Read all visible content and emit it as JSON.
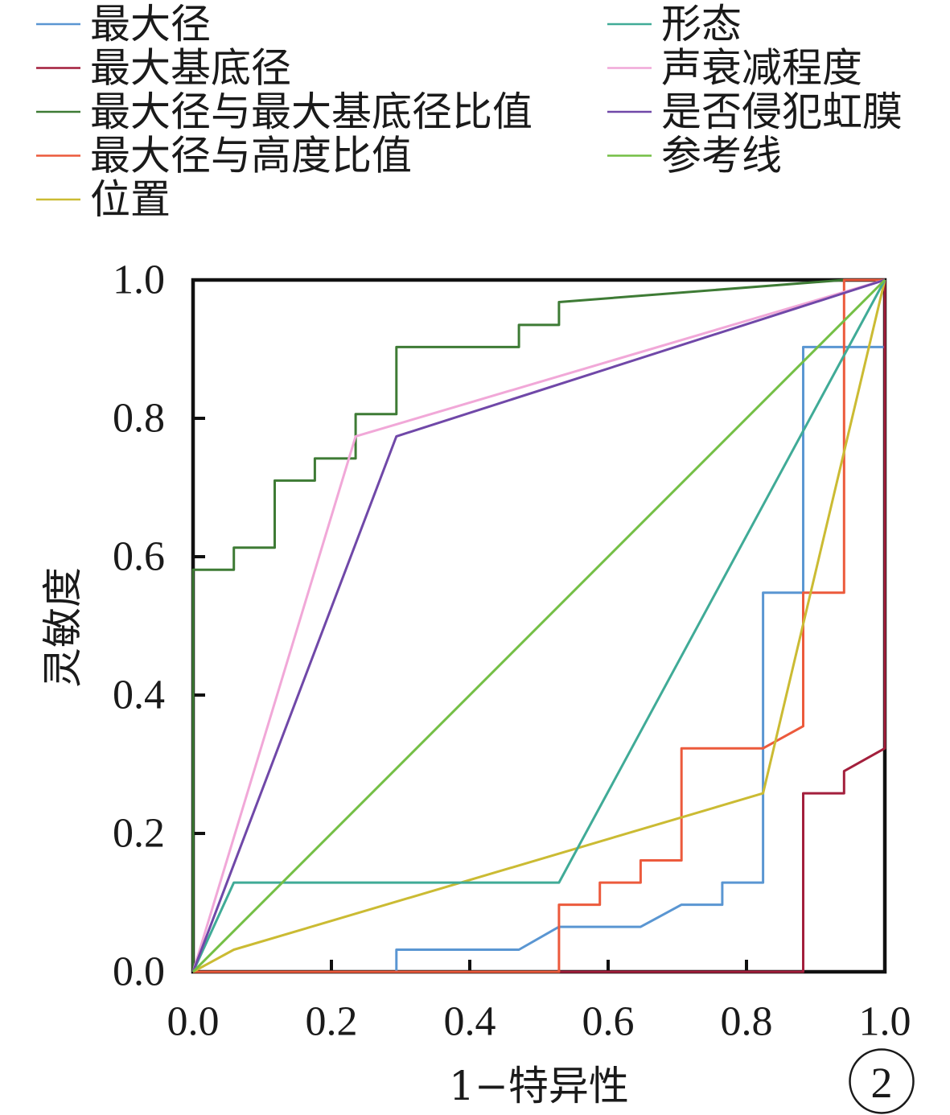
{
  "chart_data": {
    "type": "line",
    "xlabel": "1−特异性",
    "ylabel": "灵敏度",
    "xlim": [
      0,
      1
    ],
    "ylim": [
      0,
      1
    ],
    "x_ticks": [
      0,
      0.2,
      0.4,
      0.6,
      0.8,
      1.0
    ],
    "x_tick_labels": [
      "0.0",
      "0.2",
      "0.4",
      "0.6",
      "0.8",
      "1.0"
    ],
    "y_ticks": [
      0,
      0.2,
      0.4,
      0.6,
      0.8,
      1.0
    ],
    "y_tick_labels": [
      "0.0",
      "0.2",
      "0.4",
      "0.6",
      "0.8",
      "1.0"
    ],
    "grid": false,
    "legend_position": "top",
    "series": [
      {
        "name": "最大径",
        "color": "#5a96d2",
        "x": [
          0,
          0.294,
          0.294,
          0.471,
          0.529,
          0.647,
          0.706,
          0.765,
          0.765,
          0.824,
          0.824,
          0.882,
          0.882,
          1,
          1
        ],
        "y": [
          0,
          0,
          0.032,
          0.032,
          0.065,
          0.065,
          0.097,
          0.097,
          0.129,
          0.129,
          0.548,
          0.548,
          0.903,
          0.903,
          1
        ]
      },
      {
        "name": "最大基底径",
        "color": "#a31f3c",
        "x": [
          0,
          0.882,
          0.882,
          0.941,
          0.941,
          1,
          1
        ],
        "y": [
          0,
          0,
          0.258,
          0.258,
          0.29,
          0.323,
          1
        ]
      },
      {
        "name": "最大径与最大基底径比值",
        "color": "#3e7b35",
        "x": [
          0,
          0,
          0.059,
          0.059,
          0.118,
          0.118,
          0.176,
          0.176,
          0.235,
          0.235,
          0.294,
          0.294,
          0.471,
          0.471,
          0.529,
          0.529,
          0.941,
          1
        ],
        "y": [
          0,
          0.581,
          0.581,
          0.613,
          0.613,
          0.71,
          0.71,
          0.742,
          0.742,
          0.806,
          0.806,
          0.903,
          0.903,
          0.935,
          0.935,
          0.968,
          1,
          1
        ]
      },
      {
        "name": "最大径与高度比值",
        "color": "#ec5a3c",
        "x": [
          0,
          0.529,
          0.529,
          0.588,
          0.588,
          0.647,
          0.647,
          0.706,
          0.706,
          0.824,
          0.882,
          0.882,
          0.941,
          0.941,
          1
        ],
        "y": [
          0,
          0,
          0.097,
          0.097,
          0.129,
          0.129,
          0.161,
          0.161,
          0.323,
          0.323,
          0.355,
          0.548,
          0.548,
          1,
          1
        ]
      },
      {
        "name": "位置",
        "color": "#cbbb33",
        "x": [
          0,
          0.059,
          0.824,
          1
        ],
        "y": [
          0,
          0.032,
          0.258,
          1
        ]
      },
      {
        "name": "形态",
        "color": "#40ab97",
        "x": [
          0,
          0.059,
          0.529,
          1
        ],
        "y": [
          0,
          0.129,
          0.129,
          1
        ]
      },
      {
        "name": "声衰减程度",
        "color": "#f1a8d8",
        "x": [
          0,
          0.235,
          1
        ],
        "y": [
          0,
          0.774,
          1
        ]
      },
      {
        "name": "是否侵犯虹膜",
        "color": "#7048a8",
        "x": [
          0,
          0.294,
          1
        ],
        "y": [
          0,
          0.774,
          1
        ]
      },
      {
        "name": "参考线",
        "color": "#74bf45",
        "x": [
          0,
          1
        ],
        "y": [
          0,
          1
        ]
      }
    ]
  },
  "panel_label": "2"
}
